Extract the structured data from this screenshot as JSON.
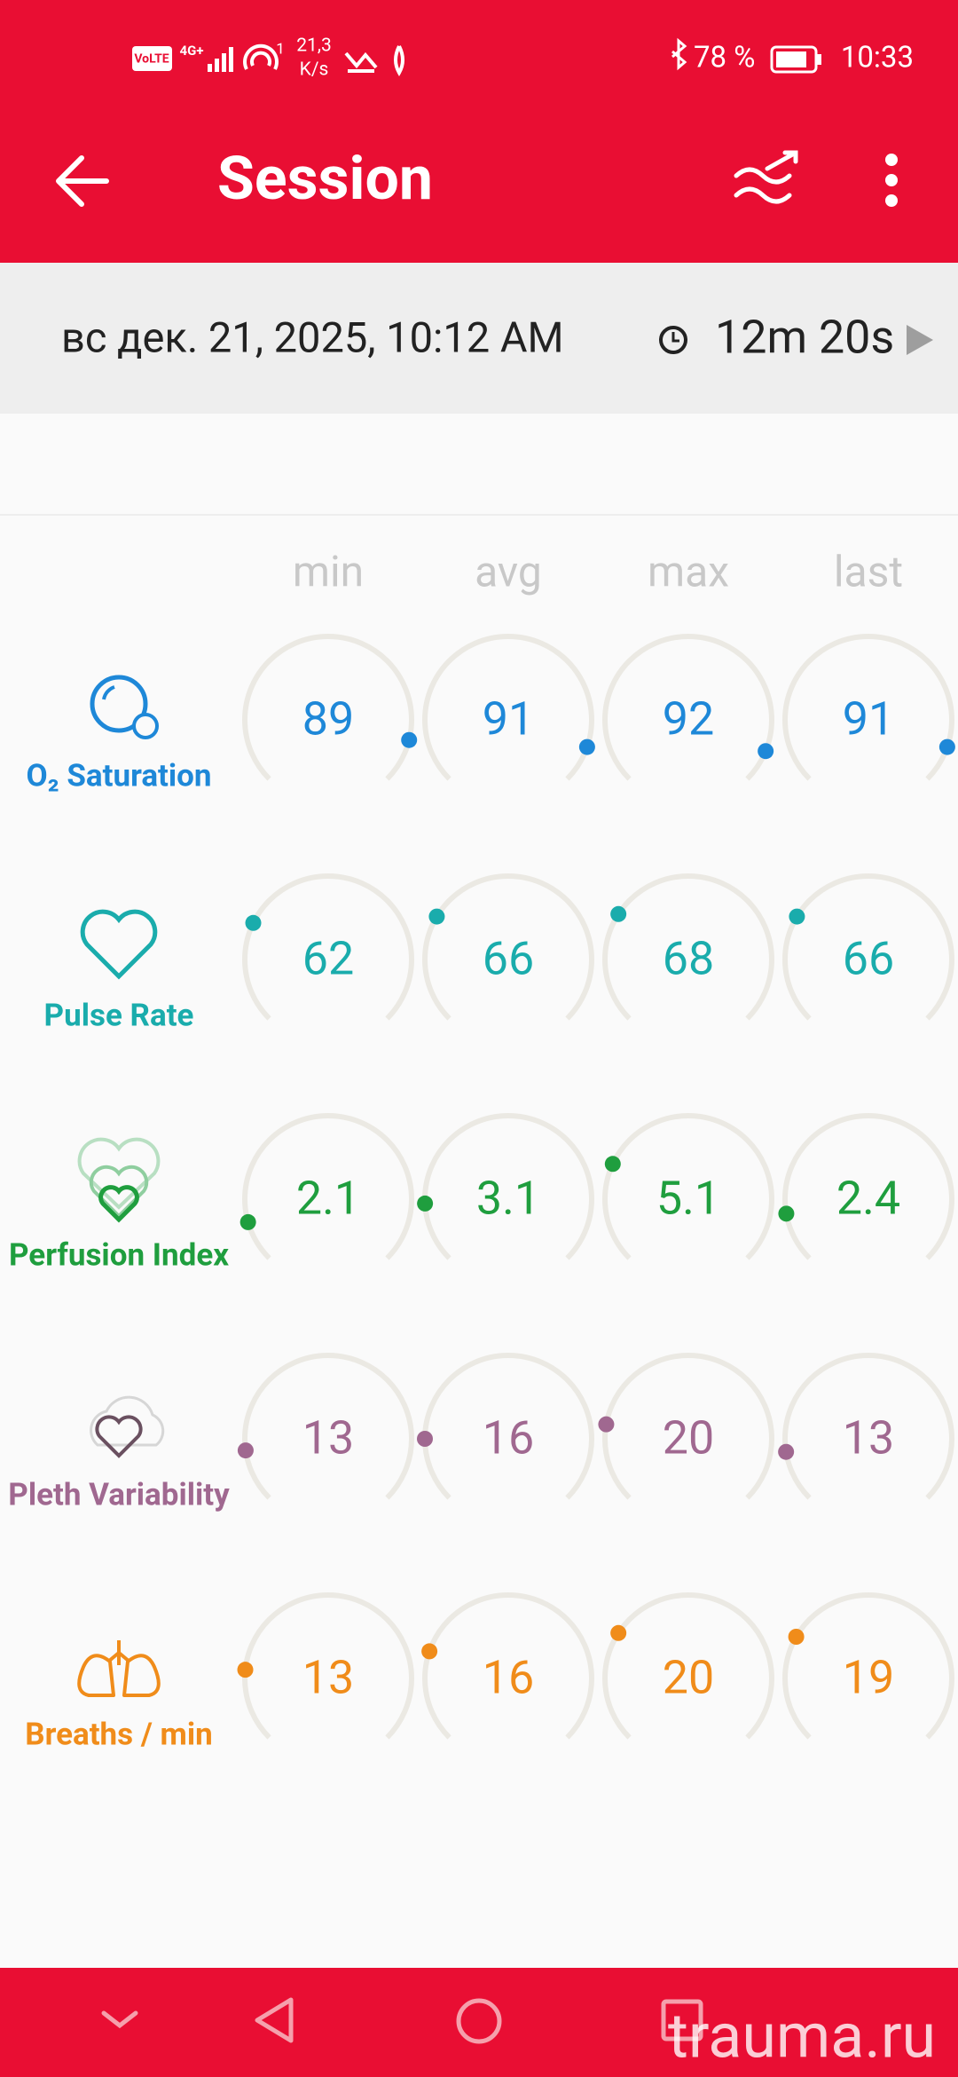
{
  "status_bar": {
    "volte": "VoLTE",
    "network": "4G+",
    "wifi_index": "1",
    "speed": "21,3",
    "speed_unit": "K/s",
    "battery": "78 %",
    "time": "10:33"
  },
  "app_bar": {
    "title": "Session"
  },
  "session": {
    "date": "вс дек. 21, 2025, 10:12 AM",
    "duration": "12m 20s"
  },
  "columns": [
    "min",
    "avg",
    "max",
    "last"
  ],
  "rows": [
    {
      "label": "O₂ Saturation",
      "values": [
        89,
        91,
        92,
        91
      ]
    },
    {
      "label": "Pulse Rate",
      "values": [
        62,
        66,
        68,
        66
      ]
    },
    {
      "label": "Perfusion Index",
      "values": [
        2.1,
        3.1,
        5.1,
        2.4
      ]
    },
    {
      "label": "Pleth Variability",
      "values": [
        13,
        16,
        20,
        13
      ]
    },
    {
      "label": "Breaths / min",
      "values": [
        13,
        16,
        20,
        19
      ]
    }
  ],
  "watermark": "trauma.ru"
}
